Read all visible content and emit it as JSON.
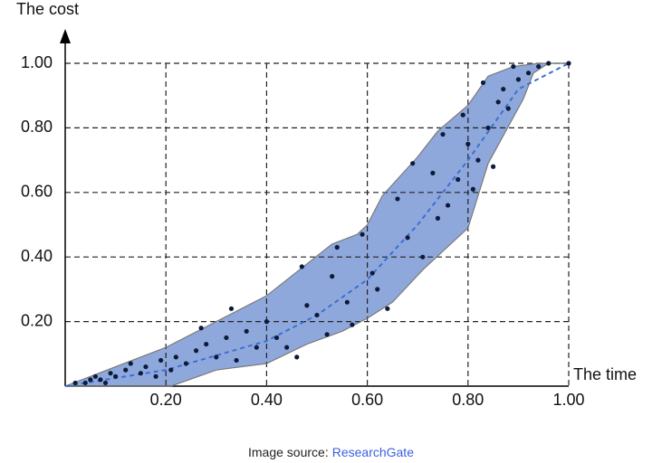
{
  "chart_data": {
    "type": "scatter",
    "ylabel": "The cost",
    "xlabel": "The time",
    "xlim": [
      0,
      1
    ],
    "ylim": [
      0,
      1
    ],
    "xticks": [
      {
        "value": 0.2,
        "label": "0.20"
      },
      {
        "value": 0.4,
        "label": "0.40"
      },
      {
        "value": 0.6,
        "label": "0.60"
      },
      {
        "value": 0.8,
        "label": "0.80"
      },
      {
        "value": 1.0,
        "label": "1.00"
      }
    ],
    "yticks": [
      {
        "value": 0.2,
        "label": "0.20"
      },
      {
        "value": 0.4,
        "label": "0.40"
      },
      {
        "value": 0.6,
        "label": "0.60"
      },
      {
        "value": 0.8,
        "label": "0.80"
      },
      {
        "value": 1.0,
        "label": "1.00"
      }
    ],
    "grid": true,
    "band_color": "#8fa8dc",
    "band_upper": {
      "x": [
        0,
        0.2,
        0.4,
        0.53,
        0.58,
        0.6,
        0.63,
        0.7,
        0.74,
        0.8,
        0.84,
        0.89,
        0.94,
        1.0
      ],
      "y": [
        0,
        0.12,
        0.28,
        0.44,
        0.47,
        0.5,
        0.59,
        0.71,
        0.79,
        0.87,
        0.96,
        0.99,
        1.0,
        1.0
      ]
    },
    "band_lower": {
      "x": [
        0,
        0.21,
        0.3,
        0.4,
        0.48,
        0.55,
        0.6,
        0.65,
        0.71,
        0.8,
        0.84,
        0.91,
        0.93,
        0.96,
        1.0
      ],
      "y": [
        0,
        0,
        0.05,
        0.07,
        0.13,
        0.17,
        0.21,
        0.26,
        0.36,
        0.49,
        0.69,
        0.89,
        0.97,
        1.0,
        1.0
      ]
    },
    "trend_color": "#3b6fd4",
    "trend": {
      "x": [
        0,
        0.2,
        0.4,
        0.5,
        0.6,
        0.7,
        0.8,
        0.9,
        1.0
      ],
      "y": [
        0,
        0.05,
        0.14,
        0.22,
        0.33,
        0.5,
        0.7,
        0.92,
        1.0
      ]
    },
    "point_color": "#0d1a3a",
    "points": {
      "x": [
        0.02,
        0.04,
        0.05,
        0.06,
        0.07,
        0.08,
        0.09,
        0.1,
        0.12,
        0.13,
        0.15,
        0.16,
        0.18,
        0.19,
        0.21,
        0.22,
        0.24,
        0.26,
        0.27,
        0.28,
        0.3,
        0.32,
        0.33,
        0.34,
        0.36,
        0.38,
        0.4,
        0.42,
        0.44,
        0.46,
        0.47,
        0.48,
        0.5,
        0.52,
        0.53,
        0.54,
        0.56,
        0.57,
        0.59,
        0.61,
        0.62,
        0.64,
        0.66,
        0.68,
        0.69,
        0.71,
        0.73,
        0.74,
        0.75,
        0.76,
        0.78,
        0.79,
        0.8,
        0.81,
        0.82,
        0.83,
        0.84,
        0.85,
        0.86,
        0.87,
        0.88,
        0.89,
        0.9,
        0.92,
        0.94,
        0.96,
        1.0
      ],
      "y": [
        0.01,
        0.01,
        0.02,
        0.03,
        0.02,
        0.01,
        0.04,
        0.03,
        0.05,
        0.07,
        0.04,
        0.06,
        0.03,
        0.08,
        0.05,
        0.09,
        0.07,
        0.11,
        0.18,
        0.13,
        0.09,
        0.15,
        0.24,
        0.08,
        0.17,
        0.12,
        0.2,
        0.15,
        0.12,
        0.09,
        0.37,
        0.25,
        0.22,
        0.16,
        0.34,
        0.43,
        0.26,
        0.19,
        0.47,
        0.35,
        0.3,
        0.24,
        0.58,
        0.46,
        0.69,
        0.4,
        0.66,
        0.52,
        0.78,
        0.56,
        0.64,
        0.84,
        0.75,
        0.61,
        0.7,
        0.94,
        0.8,
        0.68,
        0.88,
        0.92,
        0.86,
        0.99,
        0.95,
        0.97,
        0.99,
        1.0,
        1.0
      ]
    },
    "caption": {
      "prefix": "Image source:",
      "link": "ResearchGate"
    }
  }
}
